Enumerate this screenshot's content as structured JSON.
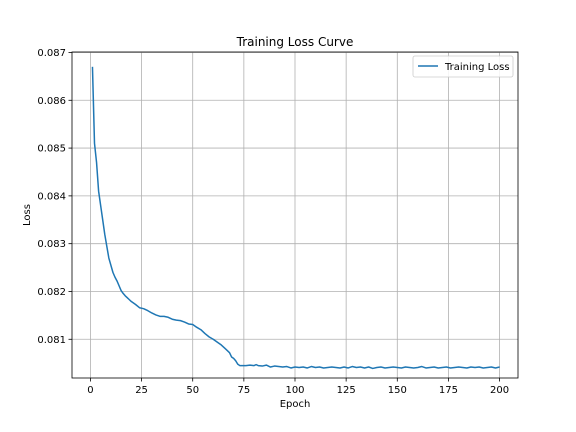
{
  "chart_data": {
    "type": "line",
    "title": "Training Loss Curve",
    "xlabel": "Epoch",
    "ylabel": "Loss",
    "xlim": [
      -9,
      209
    ],
    "ylim": [
      0.08019,
      0.08701
    ],
    "xticks": [
      0,
      25,
      50,
      75,
      100,
      125,
      150,
      175,
      200
    ],
    "yticks": [
      0.081,
      0.082,
      0.083,
      0.084,
      0.085,
      0.086,
      0.087
    ],
    "grid": true,
    "legend_position": "top-right",
    "series": [
      {
        "name": "Training Loss",
        "color": "#1f77b4",
        "points": [
          [
            1,
            0.0867
          ],
          [
            2,
            0.0851
          ],
          [
            3,
            0.0847
          ],
          [
            4,
            0.0841
          ],
          [
            5,
            0.0838
          ],
          [
            6,
            0.0835
          ],
          [
            7,
            0.0832
          ],
          [
            8,
            0.08295
          ],
          [
            9,
            0.0827
          ],
          [
            10,
            0.08255
          ],
          [
            11,
            0.0824
          ],
          [
            12,
            0.0823
          ],
          [
            13,
            0.08222
          ],
          [
            14,
            0.08212
          ],
          [
            15,
            0.08202
          ],
          [
            16,
            0.08196
          ],
          [
            17,
            0.08191
          ],
          [
            18,
            0.08187
          ],
          [
            19,
            0.08183
          ],
          [
            20,
            0.08179
          ],
          [
            22,
            0.08173
          ],
          [
            24,
            0.08166
          ],
          [
            26,
            0.08164
          ],
          [
            28,
            0.0816
          ],
          [
            30,
            0.08155
          ],
          [
            32,
            0.08151
          ],
          [
            34,
            0.08148
          ],
          [
            36,
            0.08148
          ],
          [
            38,
            0.08146
          ],
          [
            40,
            0.08142
          ],
          [
            42,
            0.0814
          ],
          [
            44,
            0.08139
          ],
          [
            46,
            0.08136
          ],
          [
            48,
            0.08132
          ],
          [
            50,
            0.08131
          ],
          [
            52,
            0.08125
          ],
          [
            54,
            0.0812
          ],
          [
            56,
            0.08112
          ],
          [
            58,
            0.08105
          ],
          [
            60,
            0.081
          ],
          [
            62,
            0.08094
          ],
          [
            64,
            0.08088
          ],
          [
            66,
            0.0808
          ],
          [
            68,
            0.08072
          ],
          [
            69,
            0.08063
          ],
          [
            70,
            0.0806
          ],
          [
            71,
            0.08055
          ],
          [
            72,
            0.08048
          ],
          [
            73,
            0.08045
          ],
          [
            74,
            0.08045
          ],
          [
            76,
            0.08045
          ],
          [
            78,
            0.08046
          ],
          [
            80,
            0.08045
          ],
          [
            81,
            0.08047
          ],
          [
            82,
            0.08045
          ],
          [
            84,
            0.08044
          ],
          [
            86,
            0.08046
          ],
          [
            88,
            0.08042
          ],
          [
            90,
            0.08044
          ],
          [
            92,
            0.08043
          ],
          [
            94,
            0.08042
          ],
          [
            96,
            0.08043
          ],
          [
            98,
            0.0804
          ],
          [
            100,
            0.08042
          ],
          [
            102,
            0.08041
          ],
          [
            104,
            0.08042
          ],
          [
            106,
            0.0804
          ],
          [
            108,
            0.08043
          ],
          [
            110,
            0.08041
          ],
          [
            112,
            0.08042
          ],
          [
            114,
            0.0804
          ],
          [
            116,
            0.08041
          ],
          [
            118,
            0.08042
          ],
          [
            120,
            0.08041
          ],
          [
            122,
            0.0804
          ],
          [
            124,
            0.08042
          ],
          [
            126,
            0.0804
          ],
          [
            128,
            0.08043
          ],
          [
            130,
            0.08041
          ],
          [
            132,
            0.08042
          ],
          [
            134,
            0.0804
          ],
          [
            136,
            0.08042
          ],
          [
            138,
            0.08039
          ],
          [
            140,
            0.08041
          ],
          [
            142,
            0.08042
          ],
          [
            144,
            0.0804
          ],
          [
            146,
            0.08041
          ],
          [
            148,
            0.08042
          ],
          [
            150,
            0.08041
          ],
          [
            152,
            0.0804
          ],
          [
            154,
            0.08042
          ],
          [
            156,
            0.08041
          ],
          [
            158,
            0.0804
          ],
          [
            160,
            0.08041
          ],
          [
            162,
            0.08043
          ],
          [
            164,
            0.0804
          ],
          [
            166,
            0.08041
          ],
          [
            168,
            0.08042
          ],
          [
            170,
            0.0804
          ],
          [
            172,
            0.08041
          ],
          [
            174,
            0.08042
          ],
          [
            176,
            0.0804
          ],
          [
            178,
            0.08041
          ],
          [
            180,
            0.08042
          ],
          [
            182,
            0.08041
          ],
          [
            184,
            0.0804
          ],
          [
            186,
            0.08042
          ],
          [
            188,
            0.08041
          ],
          [
            190,
            0.08042
          ],
          [
            192,
            0.0804
          ],
          [
            194,
            0.08041
          ],
          [
            196,
            0.08042
          ],
          [
            198,
            0.0804
          ],
          [
            200,
            0.08042
          ]
        ]
      }
    ]
  }
}
